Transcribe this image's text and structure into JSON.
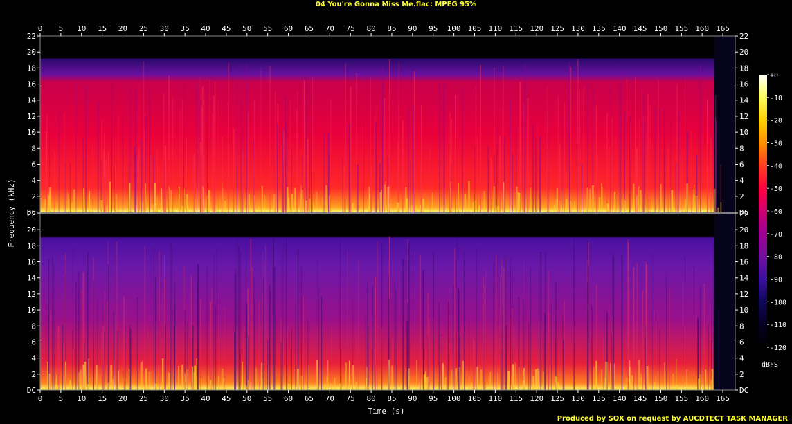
{
  "title": "04 You're Gonna Miss Me.flac: MPEG 95%",
  "credit": "Produced by SOX on request by AUCDTECT TASK MANAGER",
  "chart_data": {
    "type": "heatmap",
    "title": "04 You're Gonna Miss Me.flac: MPEG 95%",
    "xlabel": "Time (s)",
    "ylabel": "Frequency (kHz)",
    "colorbar_label": "dBFS",
    "xlim": [
      0,
      168
    ],
    "ylim": [
      0,
      22
    ],
    "x_ticks": [
      0,
      5,
      10,
      15,
      20,
      25,
      30,
      35,
      40,
      45,
      50,
      55,
      60,
      65,
      70,
      75,
      80,
      85,
      90,
      95,
      100,
      105,
      110,
      115,
      120,
      125,
      130,
      135,
      140,
      145,
      150,
      155,
      160,
      165
    ],
    "y_tick_labels": [
      "DC",
      "2",
      "4",
      "6",
      "8",
      "10",
      "12",
      "14",
      "16",
      "18",
      "20",
      "22"
    ],
    "y_tick_values": [
      0,
      2,
      4,
      6,
      8,
      10,
      12,
      14,
      16,
      18,
      20,
      22
    ],
    "colorbar_ticks": [
      "+0",
      "-10",
      "-20",
      "-30",
      "-40",
      "-50",
      "-60",
      "-70",
      "-80",
      "-90",
      "-100",
      "-110",
      "-120"
    ],
    "colorbar_values": [
      0,
      -10,
      -20,
      -30,
      -40,
      -50,
      -60,
      -70,
      -80,
      -90,
      -100,
      -110,
      -120
    ],
    "colors": [
      "#ffffff",
      "#ffff60",
      "#ffd000",
      "#ff9000",
      "#ff4020",
      "#ff0040",
      "#d00070",
      "#a00090",
      "#7010a0",
      "#3a10a0",
      "#10085a",
      "#050020",
      "#000000"
    ],
    "audio_end_s": 165,
    "channels": [
      {
        "name": "ch1",
        "cutoff_khz": 19.2,
        "level": "loud"
      },
      {
        "name": "ch2",
        "cutoff_khz": 19.2,
        "level": "quiet"
      }
    ]
  }
}
